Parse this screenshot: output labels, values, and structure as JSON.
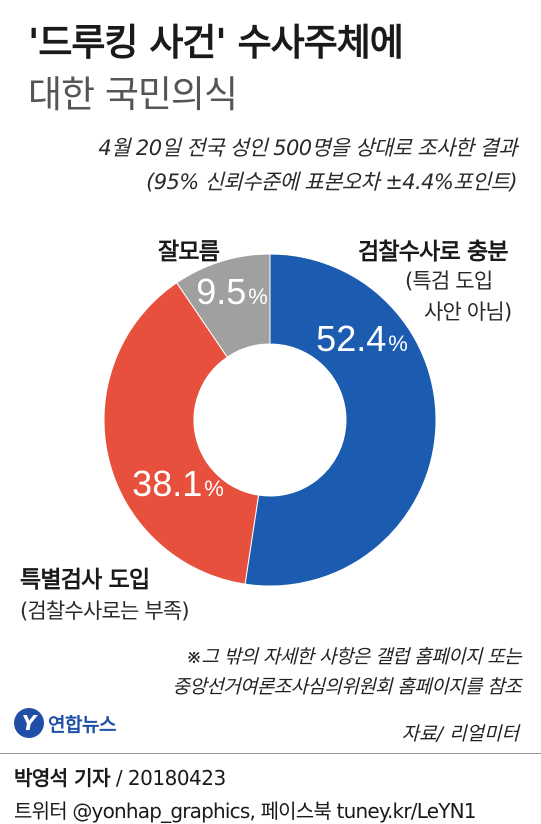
{
  "header": {
    "title": "'드루킹 사건' 수사주체에",
    "subtitle": "대한 국민의식",
    "survey_line1": "4월 20일 전국 성인 500명을 상대로 조사한 결과",
    "survey_line2": "(95% 신뢰수준에 표본오차 ±4.4%포인트)"
  },
  "chart_data": {
    "type": "pie",
    "donut": true,
    "unit": "%",
    "slices": [
      {
        "label": "검찰수사로 충분",
        "sublabel_line1": "(특검 도입",
        "sublabel_line2": "사안 아님)",
        "value": 52.4,
        "value_text": "52.4",
        "color": "#1b5bb0"
      },
      {
        "label": "특별검사 도입",
        "sublabel_line1": "(검찰수사로는 부족)",
        "value": 38.1,
        "value_text": "38.1",
        "color": "#e6503c"
      },
      {
        "label": "잘모름",
        "value": 9.5,
        "value_text": "9.5",
        "color": "#a0a0a0"
      }
    ]
  },
  "footnote": {
    "line1": "※그 밖의 자세한 사항은 갤럽 홈페이지 또는",
    "line2": "중앙선거여론조사심의위원회 홈페이지를 참조"
  },
  "brand": {
    "logo_glyph": "Y",
    "logo_name": "연합뉴스",
    "logo_icon": "yonhap-logo-icon"
  },
  "source": "자료/ 리얼미터",
  "credit": {
    "reporter": "박영석 기자",
    "date": "/ 20180423"
  },
  "social": "트위터 @yonhap_graphics, 페이스북 tuney.kr/LeYN1"
}
